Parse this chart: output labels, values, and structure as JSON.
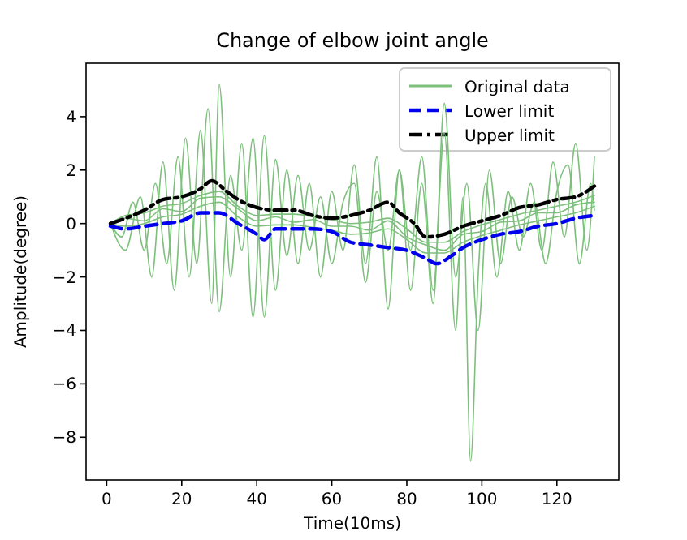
{
  "chart_data": {
    "type": "line",
    "title": "Change of elbow joint angle",
    "xlabel": "Time(10ms)",
    "ylabel": "Amplitude(degree)",
    "xlim": [
      -5.5,
      136.5
    ],
    "ylim": [
      -9.6,
      6.0
    ],
    "xticks": [
      0,
      20,
      40,
      60,
      80,
      100,
      120
    ],
    "yticks": [
      {
        "value": -8,
        "label": "−8"
      },
      {
        "value": -6,
        "label": "−6"
      },
      {
        "value": -4,
        "label": "−4"
      },
      {
        "value": -2,
        "label": "−2"
      },
      0,
      2,
      4
    ],
    "legend": "top right",
    "grid": false,
    "series": [
      {
        "name": "Original data",
        "color": "#7cc07c",
        "line_style": "solid",
        "x": [
          1,
          5,
          10,
          15,
          20,
          25,
          30,
          35,
          40,
          45,
          50,
          55,
          60,
          65,
          70,
          75,
          80,
          85,
          90,
          95,
          100,
          105,
          110,
          115,
          120,
          125,
          130
        ],
        "values": [
          0,
          0.3,
          0.4,
          0.65,
          0.75,
          1.05,
          1.2,
          0.65,
          0.3,
          0.35,
          0.35,
          0.25,
          0.15,
          0,
          0.05,
          0.2,
          -0.2,
          -0.7,
          -0.7,
          -0.3,
          -0.05,
          0.15,
          0.35,
          0.5,
          0.65,
          0.8,
          1.05
        ]
      },
      {
        "color": "#7cc07c",
        "line_style": "solid",
        "x": [
          1,
          5,
          10,
          15,
          20,
          25,
          30,
          35,
          40,
          45,
          50,
          55,
          60,
          65,
          70,
          75,
          80,
          85,
          90,
          95,
          100,
          105,
          110,
          115,
          120,
          125,
          130
        ],
        "values": [
          0,
          -0.1,
          0,
          0.25,
          0.35,
          0.65,
          0.8,
          0.25,
          -0.1,
          -0.05,
          -0.05,
          -0.15,
          -0.25,
          -0.4,
          -0.35,
          -0.2,
          -0.6,
          -1.1,
          -1.1,
          -0.7,
          -0.45,
          -0.25,
          -0.05,
          0.1,
          0.25,
          0.4,
          0.65
        ]
      },
      {
        "color": "#7cc07c",
        "line_style": "solid",
        "x": [
          1,
          5,
          10,
          15,
          20,
          25,
          30,
          35,
          40,
          45,
          50,
          55,
          60,
          65,
          70,
          75,
          80,
          85,
          90,
          95,
          100,
          105,
          110,
          115,
          120,
          125,
          130
        ],
        "values": [
          0,
          0.2,
          0.1,
          0.55,
          0.45,
          0.95,
          1.0,
          0.55,
          0.1,
          0.25,
          0.05,
          0.15,
          -0.1,
          -0.1,
          -0.25,
          0.1,
          -0.5,
          -0.8,
          -1.0,
          -0.4,
          -0.3,
          0.05,
          0.1,
          0.4,
          0.4,
          0.7,
          0.8
        ]
      },
      {
        "color": "#7cc07c",
        "line_style": "solid",
        "x": [
          1,
          4,
          7,
          10,
          13,
          16,
          19,
          22,
          25,
          28,
          30,
          33,
          36,
          39,
          42,
          45,
          48,
          51,
          54,
          57,
          60,
          63,
          66,
          69,
          72,
          75,
          78,
          81,
          84,
          87,
          90,
          93,
          95,
          97,
          99,
          101,
          104,
          107,
          110,
          113,
          116,
          119,
          122,
          125,
          128,
          130
        ],
        "values": [
          0,
          -0.5,
          0.8,
          -1,
          1.5,
          -1.5,
          2.5,
          -2,
          3.5,
          -3,
          5.2,
          -2,
          3,
          -3.5,
          3.3,
          -2.5,
          2,
          -1.5,
          1.5,
          -2,
          1.2,
          -1,
          2.2,
          -1.5,
          2.5,
          -3.2,
          2,
          -1,
          2.5,
          -2.5,
          3.4,
          -4,
          1,
          -8.9,
          -2,
          1.5,
          -2,
          1.2,
          -1,
          1.5,
          -1,
          2.3,
          -0.5,
          3,
          -1,
          2.5
        ]
      },
      {
        "color": "#7cc07c",
        "line_style": "solid",
        "x": [
          1,
          5,
          9,
          12,
          15,
          18,
          21,
          24,
          27,
          30,
          33,
          36,
          39,
          42,
          45,
          48,
          51,
          54,
          57,
          60,
          63,
          66,
          69,
          72,
          75,
          78,
          81,
          84,
          87,
          90,
          93,
          96,
          99,
          102,
          105,
          108,
          111,
          114,
          117,
          120,
          123,
          126,
          129,
          130
        ],
        "values": [
          0,
          -1,
          1,
          -2,
          2.3,
          -2.5,
          3.2,
          -1.5,
          4.3,
          -3.3,
          1.8,
          -1,
          3.2,
          -3.5,
          2.4,
          -1.2,
          1.8,
          -1,
          1,
          -1.5,
          0.8,
          1.5,
          -2.2,
          1.2,
          -1,
          2,
          -2.5,
          1.5,
          -3,
          4.5,
          -2,
          1.5,
          -4,
          2,
          -1.5,
          1,
          -0.5,
          0.8,
          -1.5,
          1.2,
          2.2,
          -1.5,
          1.5,
          0.5
        ]
      },
      {
        "name": "Lower limit",
        "color": "#0000ee",
        "line_style": "dashed",
        "x": [
          1,
          5,
          10,
          15,
          20,
          25,
          30,
          35,
          40,
          42,
          45,
          50,
          55,
          60,
          65,
          70,
          75,
          80,
          85,
          88,
          92,
          95,
          100,
          105,
          110,
          115,
          120,
          125,
          130
        ],
        "values": [
          -0.1,
          -0.2,
          -0.1,
          0,
          0.1,
          0.4,
          0.4,
          0,
          -0.4,
          -0.6,
          -0.2,
          -0.2,
          -0.2,
          -0.3,
          -0.7,
          -0.8,
          -0.9,
          -1,
          -1.3,
          -1.5,
          -1.2,
          -0.9,
          -0.6,
          -0.4,
          -0.3,
          -0.1,
          0,
          0.2,
          0.3
        ]
      },
      {
        "name": "Upper limit",
        "color": "#000000",
        "line_style": "dashdot",
        "x": [
          1,
          10,
          15,
          20,
          25,
          28,
          32,
          35,
          40,
          45,
          50,
          55,
          60,
          65,
          70,
          75,
          78,
          82,
          85,
          90,
          95,
          100,
          105,
          110,
          115,
          120,
          125,
          130
        ],
        "values": [
          0,
          0.5,
          0.9,
          1,
          1.3,
          1.6,
          1.2,
          0.9,
          0.6,
          0.5,
          0.5,
          0.3,
          0.2,
          0.3,
          0.5,
          0.8,
          0.4,
          0,
          -0.5,
          -0.4,
          -0.1,
          0.1,
          0.3,
          0.6,
          0.7,
          0.9,
          1,
          1.4
        ]
      }
    ]
  }
}
